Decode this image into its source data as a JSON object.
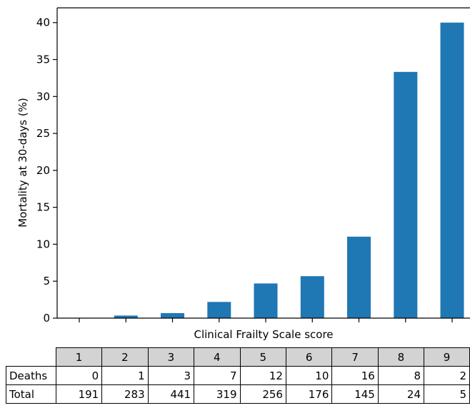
{
  "chart_data": {
    "type": "bar",
    "categories": [
      "1",
      "2",
      "3",
      "4",
      "5",
      "6",
      "7",
      "8",
      "9"
    ],
    "values": [
      0,
      0.35,
      0.68,
      2.19,
      4.69,
      5.68,
      11.03,
      33.33,
      40
    ],
    "xlabel": "Clinical Frailty Scale score",
    "ylabel": "Mortality at 30-days (%)",
    "ylim": [
      0,
      42
    ],
    "yticks": [
      0,
      5,
      10,
      15,
      20,
      25,
      30,
      35,
      40
    ],
    "bar_color": "#1f77b4",
    "grid": false,
    "table": {
      "columns": [
        "1",
        "2",
        "3",
        "4",
        "5",
        "6",
        "7",
        "8",
        "9"
      ],
      "rows": [
        {
          "label": "Deaths",
          "values": [
            "0",
            "1",
            "3",
            "7",
            "12",
            "10",
            "16",
            "8",
            "2"
          ]
        },
        {
          "label": "Total",
          "values": [
            "191",
            "283",
            "441",
            "319",
            "256",
            "176",
            "145",
            "24",
            "5"
          ]
        }
      ]
    }
  }
}
